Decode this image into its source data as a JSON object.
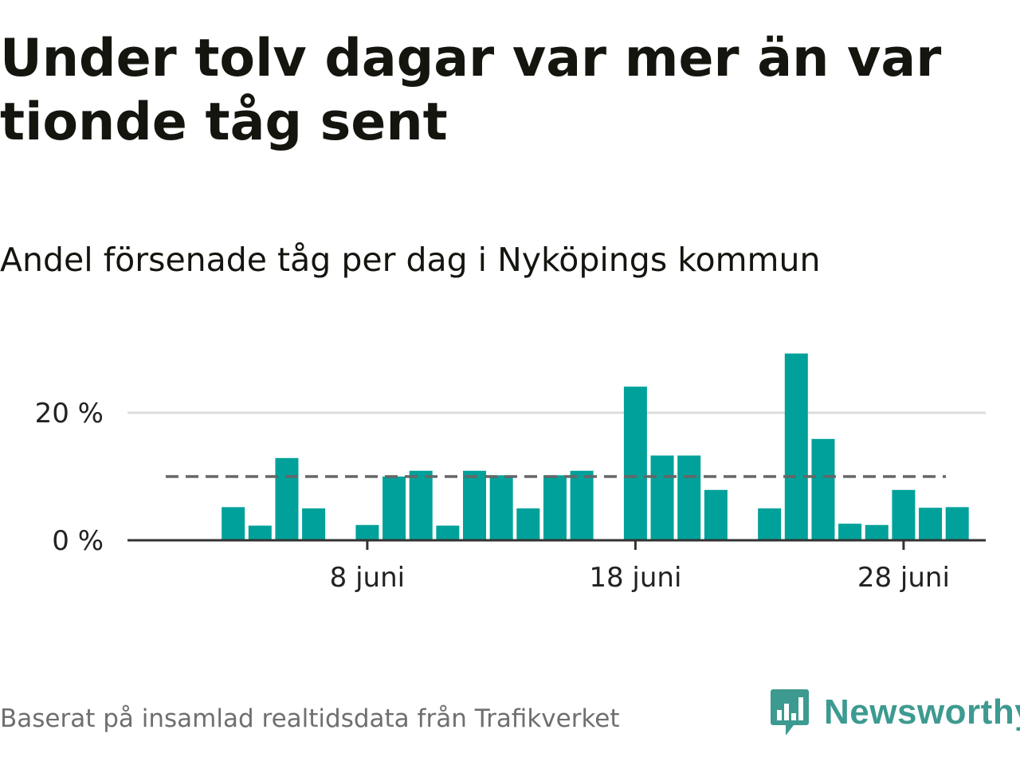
{
  "title": "Under tolv dagar var mer än var tionde tåg sent",
  "subtitle": "Andel försenade tåg per dag i Nyköpings kommun",
  "footer": "Baserat på insamlad realtidsdata från Trafikverket",
  "brand": {
    "name": "Newsworthy",
    "icon": "newsworthy-logo-icon",
    "color": "#3d9a90"
  },
  "chart_data": {
    "type": "bar",
    "x": [
      "2 juni",
      "3 juni",
      "4 juni",
      "5 juni",
      "6 juni",
      "7 juni",
      "8 juni",
      "9 juni",
      "10 juni",
      "11 juni",
      "12 juni",
      "13 juni",
      "14 juni",
      "15 juni",
      "16 juni",
      "17 juni",
      "18 juni",
      "19 juni",
      "20 juni",
      "21 juni",
      "22 juni",
      "23 juni",
      "24 juni",
      "25 juni",
      "26 juni",
      "27 juni",
      "28 juni",
      "29 juni",
      "30 juni"
    ],
    "values": [
      null,
      5.2,
      2.3,
      12.9,
      5.0,
      null,
      2.4,
      10.0,
      10.9,
      2.3,
      10.9,
      10.2,
      5.0,
      10.2,
      10.9,
      null,
      24.1,
      13.3,
      13.3,
      7.9,
      null,
      5.0,
      29.3,
      15.9,
      2.6,
      2.4,
      7.9,
      5.1,
      5.2
    ],
    "xticks": [
      {
        "value": "8 juni",
        "label": "8 juni"
      },
      {
        "value": "18 juni",
        "label": "18 juni"
      },
      {
        "value": "28 juni",
        "label": "28 juni"
      }
    ],
    "yticks": [
      {
        "value": 0,
        "label": "0 %"
      },
      {
        "value": 20,
        "label": "20 %"
      }
    ],
    "ylim": [
      0,
      30
    ],
    "reference_line": {
      "value": 10,
      "style": "dashed"
    },
    "grid": true,
    "bar_color": "#00a19a",
    "reference_color": "#666666"
  }
}
